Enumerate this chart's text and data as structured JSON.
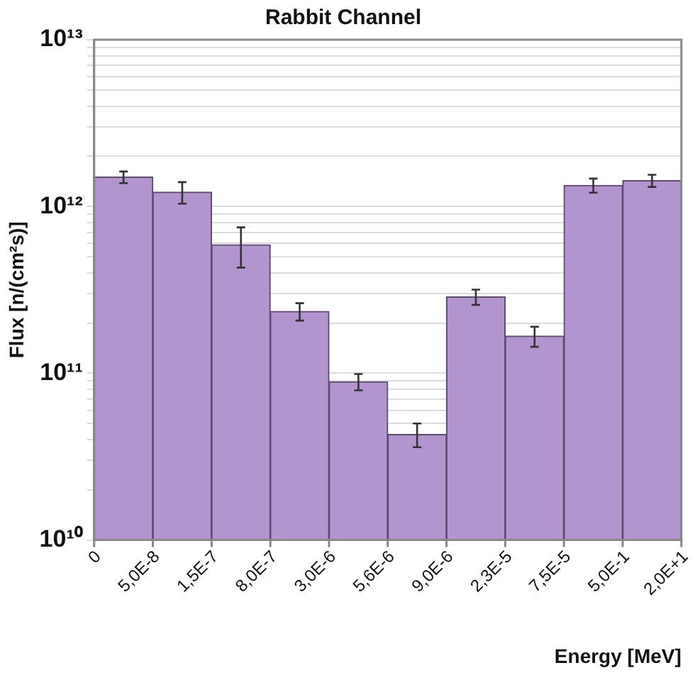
{
  "chart_data": {
    "type": "bar",
    "title": "Rabbit Channel",
    "xlabel": "Energy [MeV]",
    "ylabel": "Flux [n/(cm²s)]",
    "categories": [
      null,
      null,
      null,
      null,
      null,
      null,
      null,
      null,
      null,
      null
    ],
    "annotations": [
      "0",
      "5,0E-8",
      "1,5E-7",
      "8,0E-7",
      "3,0E-6",
      "5,6E-6",
      "9,0E-6",
      "2,3E-5",
      "7,5E-5",
      "5,0E-1",
      "2,0E+1"
    ],
    "values": [
      1500000000000.0,
      1220000000000.0,
      590000000000.0,
      235000000000.0,
      89000000000.0,
      43000000000.0,
      287000000000.0,
      167000000000.0,
      1340000000000.0,
      1430000000000.0
    ],
    "errors": [
      120000000000.0,
      180000000000.0,
      160000000000.0,
      28000000000.0,
      10000000000.0,
      7000000000.0,
      30000000000.0,
      23000000000.0,
      130000000000.0,
      120000000000.0
    ],
    "color": "#b294cf",
    "log": true,
    "ylim": [
      10000000000.0,
      10000000000000.0
    ],
    "yticks": [
      {
        "value": 10000000000.0,
        "label": "10¹⁰"
      },
      {
        "value": 20000000000.0,
        "label": null
      },
      {
        "value": 30000000000.0,
        "label": null
      },
      {
        "value": 40000000000.0,
        "label": null
      },
      {
        "value": 50000000000.0,
        "label": null
      },
      {
        "value": 60000000000.0,
        "label": null
      },
      {
        "value": 70000000000.0,
        "label": null
      },
      {
        "value": 80000000000.0,
        "label": null
      },
      {
        "value": 90000000000.0,
        "label": null
      },
      {
        "value": 100000000000.0,
        "label": "10¹¹"
      },
      {
        "value": 200000000000.0,
        "label": null
      },
      {
        "value": 300000000000.0,
        "label": null
      },
      {
        "value": 400000000000.0,
        "label": null
      },
      {
        "value": 500000000000.0,
        "label": null
      },
      {
        "value": 600000000000.0,
        "label": null
      },
      {
        "value": 700000000000.0,
        "label": null
      },
      {
        "value": 800000000000.0,
        "label": null
      },
      {
        "value": 900000000000.0,
        "label": null
      },
      {
        "value": 1000000000000.0,
        "label": "10¹²"
      },
      {
        "value": 2000000000000.0,
        "label": null
      },
      {
        "value": 3000000000000.0,
        "label": null
      },
      {
        "value": 4000000000000.0,
        "label": null
      },
      {
        "value": 5000000000000.0,
        "label": null
      },
      {
        "value": 6000000000000.0,
        "label": null
      },
      {
        "value": 7000000000000.0,
        "label": null
      },
      {
        "value": 8000000000000.0,
        "label": null
      },
      {
        "value": 9000000000000.0,
        "label": null
      },
      {
        "value": 10000000000000.0,
        "label": "10¹³"
      }
    ],
    "grid": "y"
  }
}
